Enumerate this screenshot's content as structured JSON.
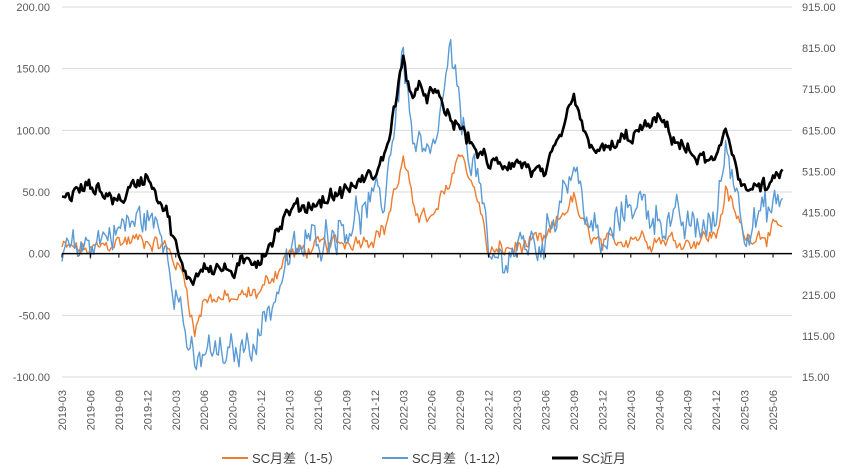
{
  "chart_data": {
    "type": "line",
    "title": "",
    "xlabel": "",
    "ylabel_left": "",
    "ylabel_right": "",
    "y_left_range": [
      -100,
      200
    ],
    "y_left_ticks": [
      "-100.00",
      "-50.00",
      "0.00",
      "50.00",
      "100.00",
      "150.00",
      "200.00"
    ],
    "y_right_range": [
      15,
      915
    ],
    "y_right_ticks": [
      "15.00",
      "115.00",
      "215.00",
      "315.00",
      "415.00",
      "515.00",
      "615.00",
      "715.00",
      "815.00",
      "915.00"
    ],
    "x_tick_labels": [
      "2019-03",
      "2019-06",
      "2019-09",
      "2019-12",
      "2020-03",
      "2020-06",
      "2020-09",
      "2020-12",
      "2021-03",
      "2021-06",
      "2021-09",
      "2021-12",
      "2022-03",
      "2022-06",
      "2022-09",
      "2022-12",
      "2023-03",
      "2023-06",
      "2023-09",
      "2023-12",
      "2024-03",
      "2024-06",
      "2024-09",
      "2024-12",
      "2025-03",
      "2025-06"
    ],
    "grid": "horizontal",
    "legend_position": "bottom",
    "series": [
      {
        "name": "SC月差（1-5）",
        "axis": "left",
        "color": "#ED7D31",
        "x": [
          "2019-03",
          "2019-06",
          "2019-09",
          "2019-12",
          "2020-02",
          "2020-04",
          "2020-05",
          "2020-06",
          "2020-09",
          "2020-12",
          "2021-03",
          "2021-06",
          "2021-09",
          "2021-12",
          "2022-01",
          "2022-03",
          "2022-04",
          "2022-06",
          "2022-08",
          "2022-09",
          "2022-11",
          "2022-12",
          "2023-03",
          "2023-06",
          "2023-08",
          "2023-09",
          "2023-10",
          "2023-12",
          "2024-03",
          "2024-06",
          "2024-09",
          "2024-12",
          "2025-01",
          "2025-03",
          "2025-06",
          "2025-07"
        ],
        "values": [
          5,
          2,
          10,
          12,
          5,
          -20,
          -65,
          -35,
          -38,
          -30,
          0,
          5,
          10,
          15,
          20,
          75,
          40,
          25,
          60,
          85,
          40,
          0,
          5,
          10,
          35,
          45,
          20,
          5,
          15,
          12,
          10,
          15,
          50,
          15,
          18,
          22
        ]
      },
      {
        "name": "SC月差（1-12）",
        "axis": "left",
        "color": "#5B9BD5",
        "x": [
          "2019-03",
          "2019-06",
          "2019-09",
          "2019-12",
          "2020-02",
          "2020-04",
          "2020-05",
          "2020-06",
          "2020-09",
          "2020-12",
          "2021-03",
          "2021-06",
          "2021-09",
          "2021-12",
          "2022-01",
          "2022-03",
          "2022-04",
          "2022-06",
          "2022-08",
          "2022-09",
          "2022-11",
          "2022-12",
          "2023-03",
          "2023-06",
          "2023-08",
          "2023-09",
          "2023-10",
          "2023-12",
          "2024-03",
          "2024-06",
          "2024-09",
          "2024-12",
          "2025-01",
          "2025-03",
          "2025-06",
          "2025-07"
        ],
        "values": [
          -5,
          10,
          20,
          30,
          10,
          -60,
          -100,
          -80,
          -85,
          -60,
          -5,
          15,
          25,
          40,
          45,
          165,
          90,
          70,
          160,
          110,
          60,
          -10,
          5,
          10,
          60,
          70,
          40,
          0,
          45,
          30,
          20,
          25,
          90,
          25,
          35,
          45
        ]
      },
      {
        "name": "SC近月",
        "axis": "right",
        "color": "#000000",
        "x": [
          "2019-03",
          "2019-06",
          "2019-09",
          "2019-12",
          "2020-02",
          "2020-04",
          "2020-05",
          "2020-06",
          "2020-09",
          "2020-12",
          "2021-03",
          "2021-06",
          "2021-09",
          "2021-12",
          "2022-01",
          "2022-03",
          "2022-04",
          "2022-06",
          "2022-08",
          "2022-09",
          "2022-11",
          "2022-12",
          "2023-03",
          "2023-06",
          "2023-08",
          "2023-09",
          "2023-10",
          "2023-12",
          "2024-03",
          "2024-06",
          "2024-09",
          "2024-12",
          "2025-01",
          "2025-03",
          "2025-06",
          "2025-07"
        ],
        "values": [
          450,
          480,
          445,
          510,
          420,
          250,
          260,
          290,
          270,
          310,
          420,
          440,
          470,
          510,
          550,
          780,
          700,
          710,
          640,
          620,
          560,
          530,
          540,
          500,
          620,
          700,
          600,
          560,
          600,
          640,
          560,
          530,
          620,
          470,
          480,
          520
        ]
      }
    ]
  }
}
